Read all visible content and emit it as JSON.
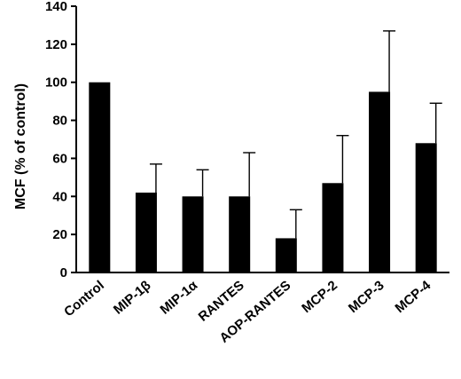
{
  "chart_data": {
    "type": "bar",
    "categories": [
      "Control",
      "MIP-1β",
      "MIP-1α",
      "RANTES",
      "AOP-RANTES",
      "MCP-2",
      "MCP-3",
      "MCP-4"
    ],
    "values": [
      100,
      42,
      40,
      40,
      18,
      47,
      95,
      68
    ],
    "error_upper": [
      0,
      15,
      14,
      23,
      15,
      25,
      32,
      21
    ],
    "title": "",
    "xlabel": "",
    "ylabel": "MCF (% of control)",
    "ylim": [
      0,
      140
    ],
    "yticks": [
      0,
      20,
      40,
      60,
      80,
      100,
      120,
      140
    ],
    "grid": false,
    "legend": "none",
    "bar_color": "#000000"
  }
}
